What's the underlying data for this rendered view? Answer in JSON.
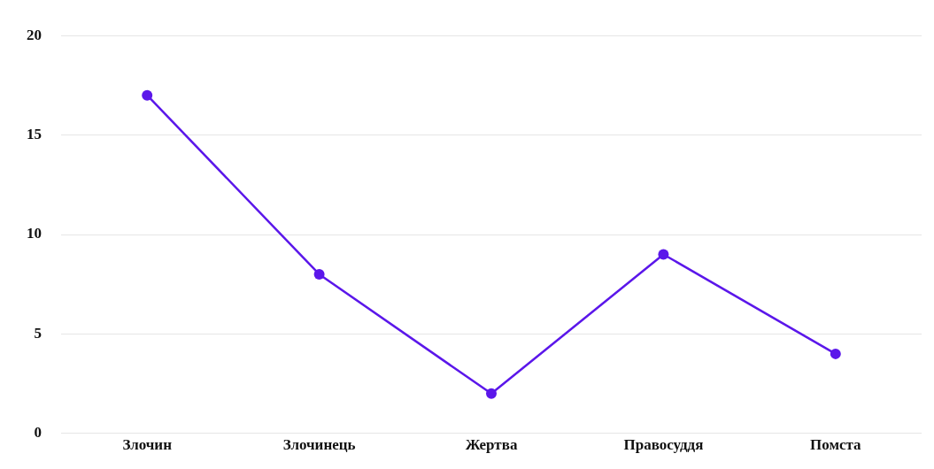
{
  "chart_data": {
    "type": "line",
    "categories": [
      "Злочин",
      "Злочинець",
      "Жертва",
      "Правосуддя",
      "Помста"
    ],
    "series": [
      {
        "color": "#5b17ea",
        "values": [
          17,
          8,
          2,
          9,
          4
        ]
      }
    ],
    "ylim": [
      0,
      20
    ],
    "yticks": [
      0,
      5,
      10,
      15,
      20
    ],
    "grid": "y",
    "legend": false,
    "marker": "circle",
    "line_style": "solid"
  }
}
